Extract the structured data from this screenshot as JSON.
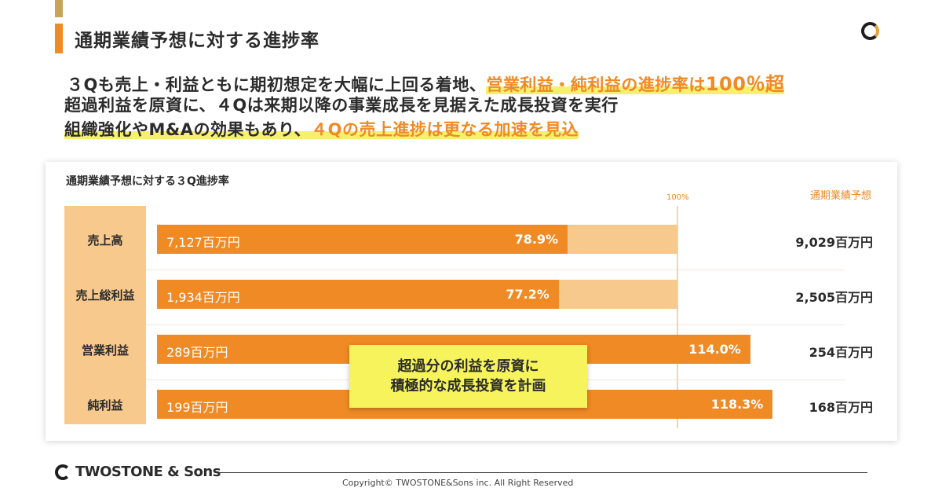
{
  "header": {
    "title": "通期業績予想に対する進捗率"
  },
  "messages": {
    "line1_plain": "３Qも売上・利益ともに期初想定を大幅に上回る着地、",
    "line1_highlight": "営業利益・純利益の進捗率は",
    "line1_highlight_big": "100％超",
    "line2": "超過利益を原資に、４Qは来期以降の事業成長を見据えた成長投資を実行",
    "line3_plain": "組織強化やM&Aの効果もあり、",
    "line3_highlight": "４Qの売上進捗は更なる加速を見込"
  },
  "chart_data": {
    "type": "bar",
    "title": "通期業績予想に対する３Q進捗率",
    "reference_line_label": "100%",
    "plan_column_header": "通期業績予想",
    "categories": [
      "売上高",
      "売上総利益",
      "営業利益",
      "純利益"
    ],
    "actual_labels": [
      "7,127百万円",
      "1,934百万円",
      "289百万円",
      "199百万円"
    ],
    "actual_values": [
      7127,
      1934,
      289,
      199
    ],
    "progress_percent": [
      78.9,
      77.2,
      114.0,
      118.3
    ],
    "progress_labels": [
      "78.9%",
      "77.2%",
      "114.0%",
      "118.3%"
    ],
    "plan_labels": [
      "9,029百万円",
      "2,505百万円",
      "254百万円",
      "168百万円"
    ],
    "plan_values": [
      9029,
      2505,
      254,
      168
    ],
    "unit": "百万円",
    "colors": {
      "actual": "#f08a24",
      "plan": "#f8c98d",
      "highlight": "#f6f35c"
    }
  },
  "callout": {
    "line1": "超過分の利益を原資に",
    "line2": "積極的な成長投資を計画"
  },
  "footer": {
    "logo": "TWOSTONE & Sons",
    "copyright": "Copyright© TWOSTONE&Sons inc. All Right Reserved"
  }
}
